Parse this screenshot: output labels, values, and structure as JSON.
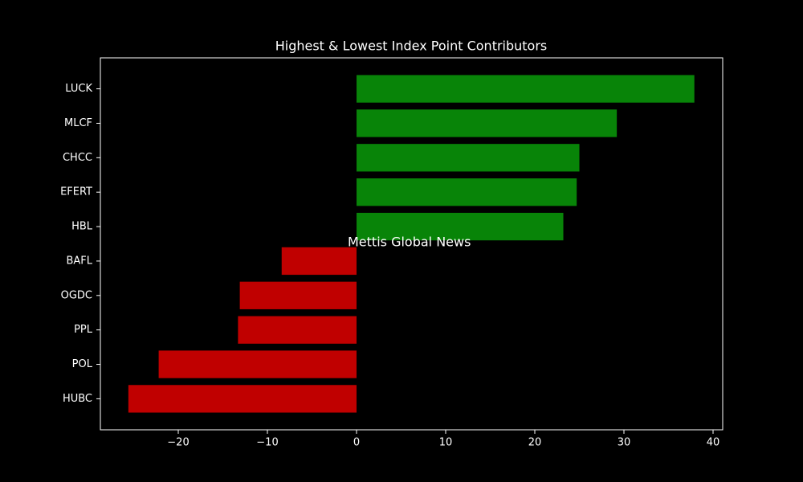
{
  "chart_data": {
    "type": "hbar",
    "title": "Highest & Lowest Index Point Contributors",
    "categories": [
      "LUCK",
      "MLCF",
      "CHCC",
      "EFERT",
      "HBL",
      "BAFL",
      "OGDC",
      "PPL",
      "POL",
      "HUBC"
    ],
    "values": [
      37.9,
      29.2,
      25.0,
      24.7,
      23.2,
      -8.4,
      -13.1,
      -13.3,
      -22.2,
      -25.6
    ],
    "colors": [
      "#088408",
      "#088408",
      "#088408",
      "#088408",
      "#088408",
      "#c00000",
      "#c00000",
      "#c00000",
      "#c00000",
      "#c00000"
    ],
    "xlim": [
      -28.74,
      41.08
    ],
    "xticks": [
      {
        "value": -20,
        "label": "−20"
      },
      {
        "value": -10,
        "label": "−10"
      },
      0,
      10,
      20,
      30,
      40
    ],
    "annotation": "Mettis Global News",
    "annotation_color": "#b0502a"
  }
}
